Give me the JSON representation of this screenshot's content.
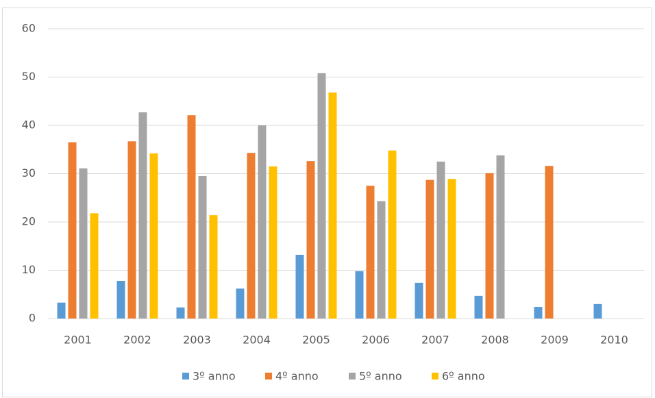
{
  "chart_data": {
    "type": "bar",
    "categories": [
      "2001",
      "2002",
      "2003",
      "2004",
      "2005",
      "2006",
      "2007",
      "2008",
      "2009",
      "2010"
    ],
    "series": [
      {
        "name": "3º anno",
        "color": "#5b9bd5",
        "values": [
          3.3,
          7.8,
          2.3,
          6.2,
          13.2,
          9.8,
          7.4,
          4.7,
          2.4,
          3.0
        ]
      },
      {
        "name": "4º anno",
        "color": "#ed7d31",
        "values": [
          36.5,
          36.7,
          42.1,
          34.3,
          32.6,
          27.5,
          28.7,
          30.1,
          31.6,
          null
        ]
      },
      {
        "name": "5º anno",
        "color": "#a5a5a5",
        "values": [
          31.1,
          42.7,
          29.5,
          40.0,
          50.8,
          24.3,
          32.5,
          33.8,
          null,
          null
        ]
      },
      {
        "name": "6º anno",
        "color": "#ffc000",
        "values": [
          21.8,
          34.2,
          21.4,
          31.5,
          46.8,
          34.8,
          28.9,
          null,
          null,
          null
        ]
      }
    ],
    "ylim": [
      0,
      60
    ],
    "yticks": [
      0,
      10,
      20,
      30,
      40,
      50,
      60
    ],
    "grid": true,
    "legend": "bottom"
  }
}
